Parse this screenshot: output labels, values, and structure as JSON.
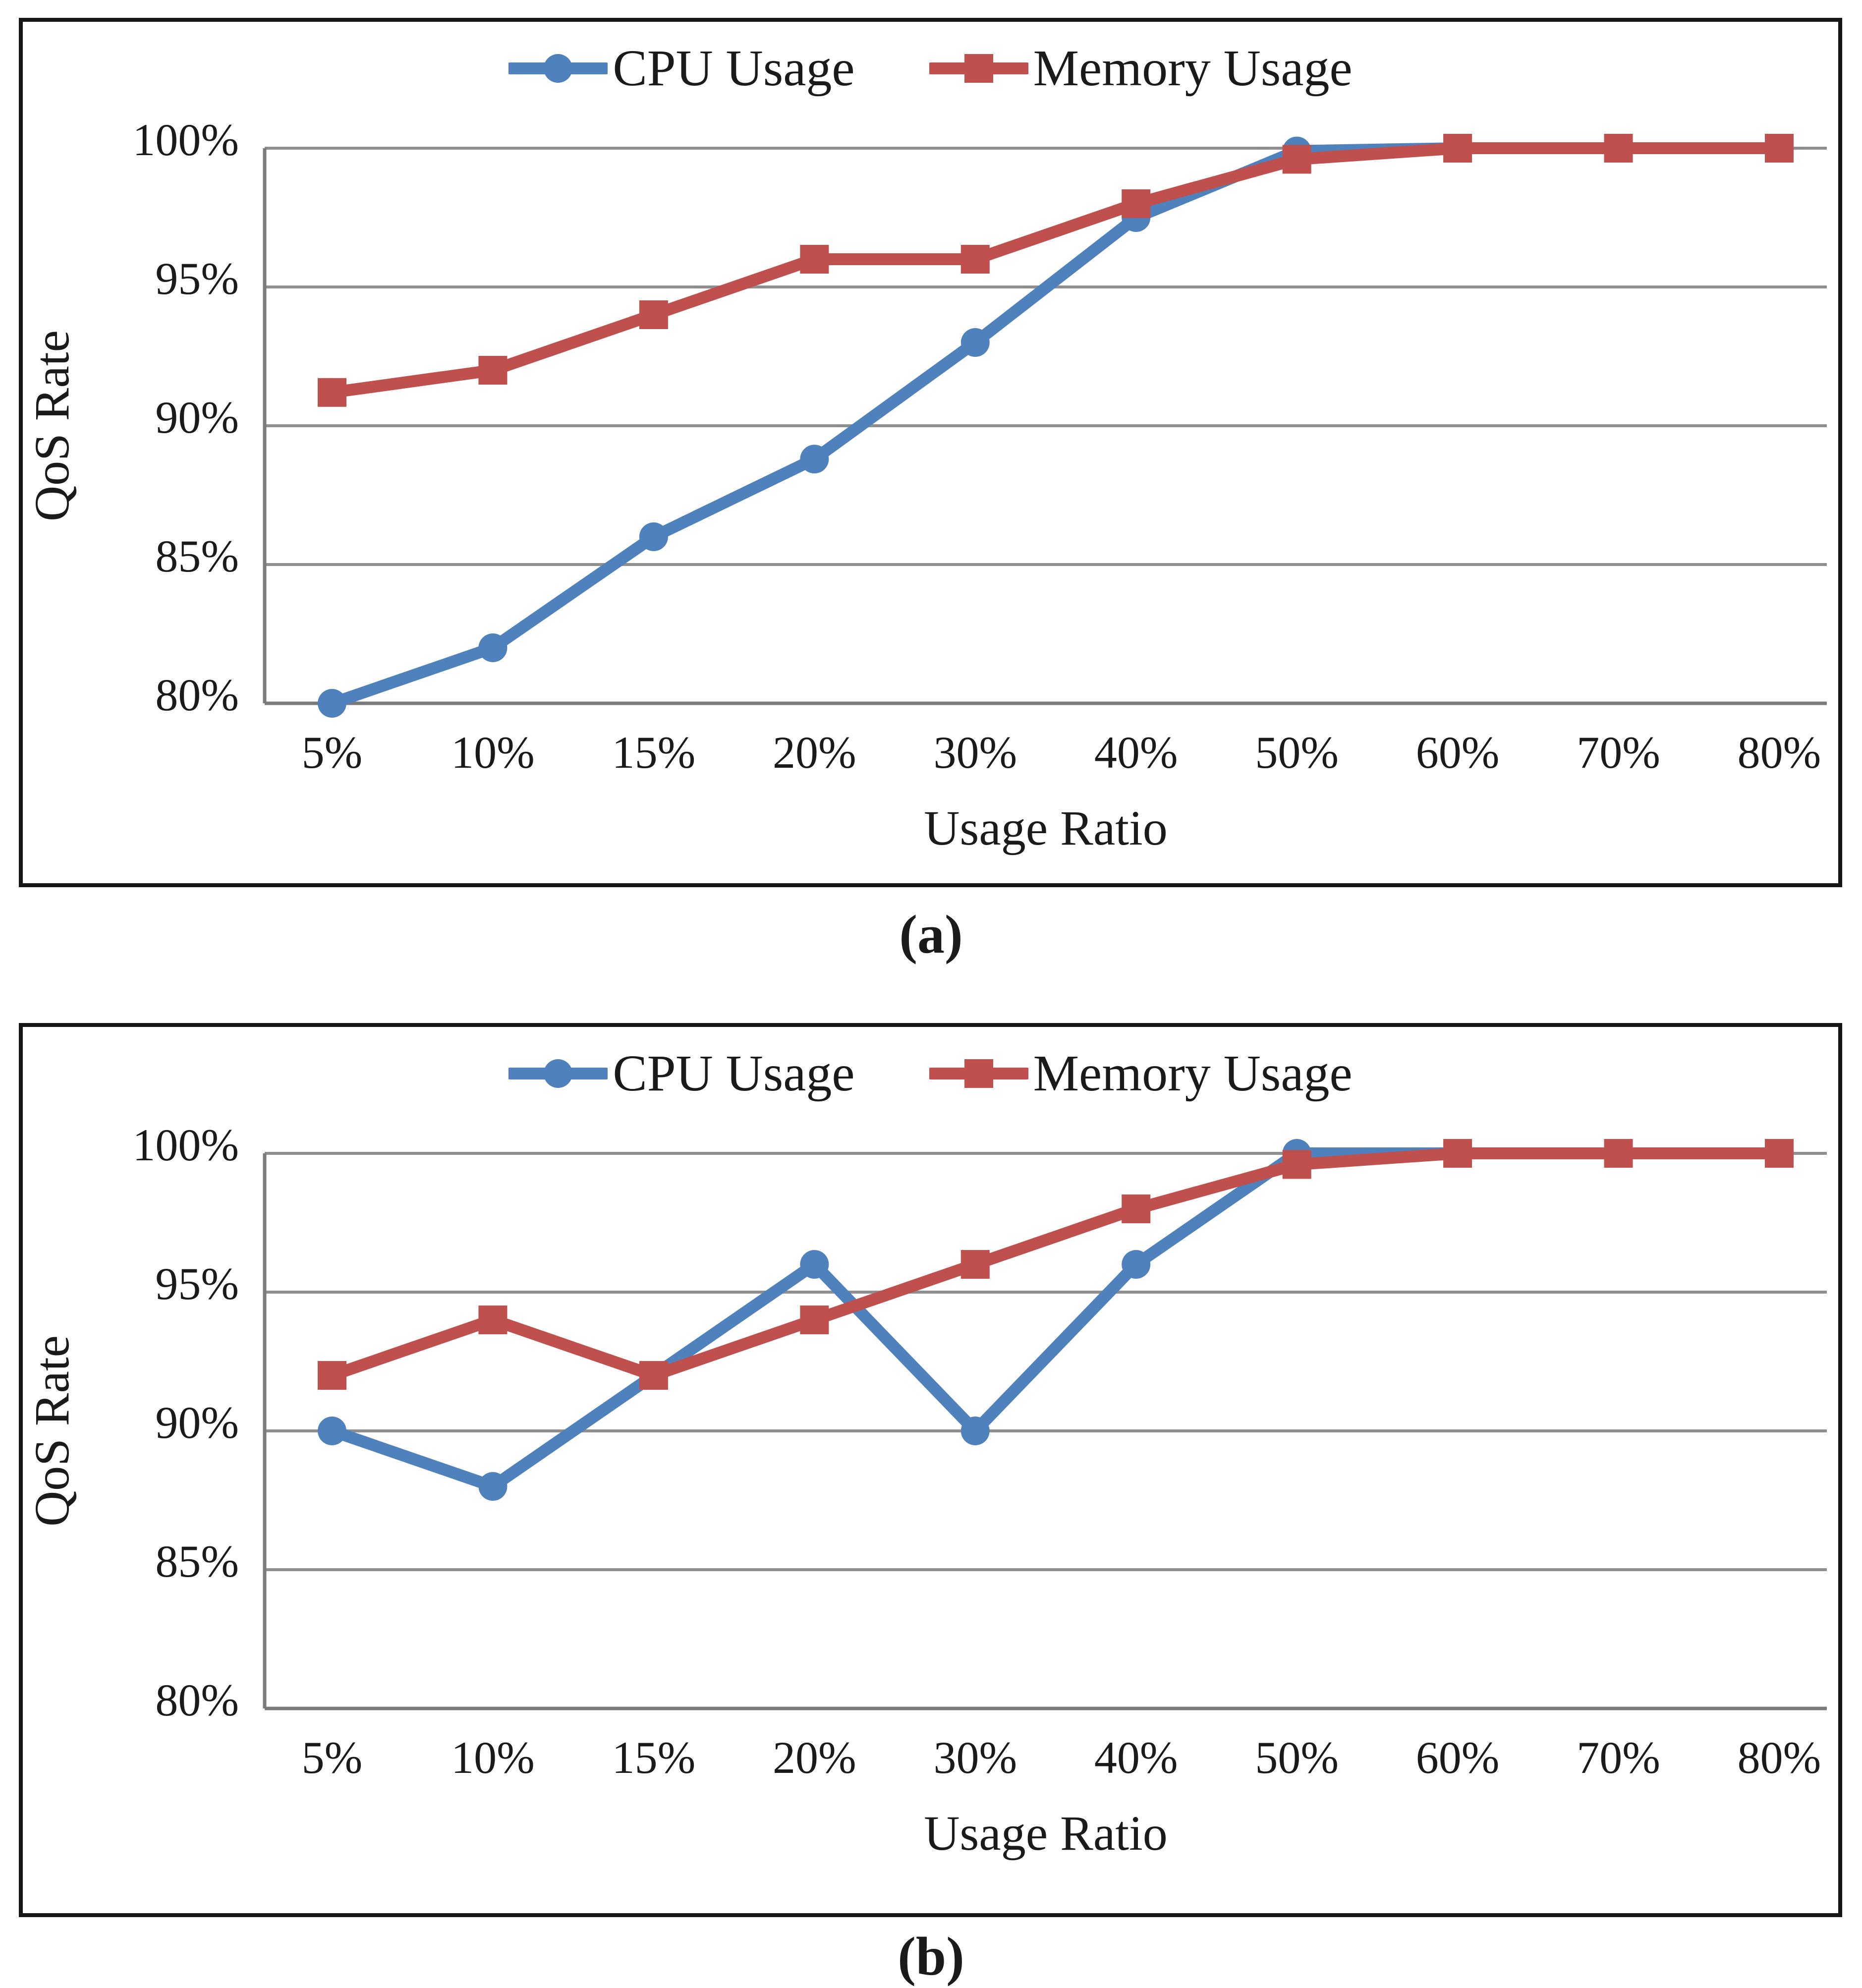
{
  "figures": [
    {
      "caption": "(a)"
    },
    {
      "caption": "(b)"
    }
  ],
  "colors": {
    "cpu_series": "#4F81BD",
    "memory_series": "#C0504D",
    "gridline": "#8f8f8f",
    "axis_line": "#7a7a7a",
    "frame": "#161616",
    "text": "#1a1a1a"
  },
  "chart_data": [
    {
      "type": "line",
      "title": "",
      "xlabel": "Usage Ratio",
      "ylabel": "QoS Rate",
      "categories": [
        "5%",
        "10%",
        "15%",
        "20%",
        "30%",
        "40%",
        "50%",
        "60%",
        "70%",
        "80%"
      ],
      "series": [
        {
          "name": "CPU Usage",
          "color": "#4F81BD",
          "marker": "circle",
          "values": [
            80,
            82,
            86,
            88.8,
            93,
            97.5,
            99.9,
            100,
            100,
            100
          ]
        },
        {
          "name": "Memory Usage",
          "color": "#C0504D",
          "marker": "square",
          "values": [
            91.2,
            92,
            94,
            96,
            96,
            98,
            99.6,
            100,
            100,
            100
          ]
        }
      ],
      "ylim": [
        80,
        100
      ],
      "ytick_step": 5,
      "ytick_labels": [
        "80%",
        "85%",
        "90%",
        "95%",
        "100%"
      ],
      "grid": true,
      "legend_position": "top-center"
    },
    {
      "type": "line",
      "title": "",
      "xlabel": "Usage Ratio",
      "ylabel": "QoS Rate",
      "categories": [
        "5%",
        "10%",
        "15%",
        "20%",
        "30%",
        "40%",
        "50%",
        "60%",
        "70%",
        "80%"
      ],
      "series": [
        {
          "name": "CPU Usage",
          "color": "#4F81BD",
          "marker": "circle",
          "values": [
            90,
            88,
            92,
            96,
            90,
            96,
            100,
            100,
            100,
            100
          ]
        },
        {
          "name": "Memory Usage",
          "color": "#C0504D",
          "marker": "square",
          "values": [
            92,
            94,
            92,
            94,
            96,
            98,
            99.6,
            100,
            100,
            100
          ]
        }
      ],
      "ylim": [
        80,
        100
      ],
      "ytick_step": 5,
      "ytick_labels": [
        "80%",
        "85%",
        "90%",
        "95%",
        "100%"
      ],
      "grid": true,
      "legend_position": "top-center"
    }
  ]
}
